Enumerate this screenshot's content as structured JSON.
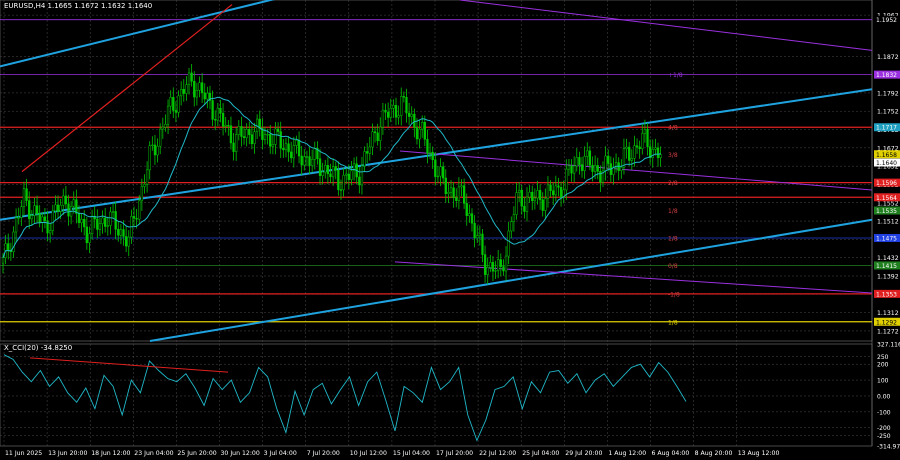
{
  "header": {
    "symbol_line": "EURUSD,H4  1.1665 1.1672 1.1632 1.1640",
    "osc_line": "X_CCI(20) -34.8250"
  },
  "colors": {
    "background": "#000000",
    "candle": "#00c800",
    "ma": "#20b8c8",
    "trend": "#1fa3e0",
    "channel": "#9b30e0",
    "level_red": "#e02020",
    "red_trendline": "#e02020",
    "grid": "#4a4a4a",
    "cci": "#20b8c8",
    "level_yellow": "#e0d000"
  },
  "chart_data": [
    {
      "type": "candlestick",
      "symbol": "EURUSD",
      "timeframe": "H4",
      "ohlc_last": {
        "open": 1.1665,
        "high": 1.1672,
        "low": 1.1632,
        "close": 1.164
      },
      "ylim": [
        1.125,
        1.1995
      ],
      "price_ticks": [
        1.1962,
        1.1872,
        1.1792,
        1.1752,
        1.1712,
        1.1672,
        1.1632,
        1.1592,
        1.1552,
        1.1512,
        1.1472,
        1.1432,
        1.1392,
        1.1352,
        1.1312,
        1.1272
      ],
      "price_tag_values": [
        "1.1952",
        "1.1832",
        "1.1717",
        "1.1658",
        "1.1640",
        "1.1596",
        "1.1564",
        "1.1535",
        "1.1475",
        "1.1415",
        "1.1353",
        "1.1292"
      ],
      "x_labels": [
        "11 Jun 2025",
        "13 Jun 20:00",
        "18 Jun 12:00",
        "23 Jun 04:00",
        "25 Jun 20:00",
        "30 Jun 12:00",
        "3 Jul 04:00",
        "7 Jul 20:00",
        "10 Jul 12:00",
        "15 Jul 04:00",
        "17 Jul 20:00",
        "22 Jul 12:00",
        "25 Jul 04:00",
        "29 Jul 20:00",
        "1 Aug 12:00",
        "6 Aug 04:00",
        "8 Aug 20:00",
        "13 Aug 12:00"
      ],
      "horizontal_levels": [
        {
          "value": 1.1717,
          "color": "red"
        },
        {
          "value": 1.1596,
          "color": "red"
        },
        {
          "value": 1.1564,
          "color": "red"
        },
        {
          "value": 1.1353,
          "color": "red"
        },
        {
          "value": 1.1292,
          "color": "yellow"
        }
      ],
      "level_tags": [
        "1/8",
        "4/8",
        "3/8",
        "2/8",
        "1/8",
        "1/8",
        "0/8",
        "-1/8"
      ],
      "close_path": [
        {
          "bar": 0,
          "close": 1.142
        },
        {
          "bar": 8,
          "close": 1.156
        },
        {
          "bar": 16,
          "close": 1.15
        },
        {
          "bar": 24,
          "close": 1.156
        },
        {
          "bar": 32,
          "close": 1.149
        },
        {
          "bar": 40,
          "close": 1.152
        },
        {
          "bar": 48,
          "close": 1.147
        },
        {
          "bar": 56,
          "close": 1.165
        },
        {
          "bar": 64,
          "close": 1.176
        },
        {
          "bar": 72,
          "close": 1.182
        },
        {
          "bar": 80,
          "close": 1.176
        },
        {
          "bar": 88,
          "close": 1.169
        },
        {
          "bar": 96,
          "close": 1.171
        },
        {
          "bar": 104,
          "close": 1.169
        },
        {
          "bar": 112,
          "close": 1.166
        },
        {
          "bar": 120,
          "close": 1.164
        },
        {
          "bar": 128,
          "close": 1.16
        },
        {
          "bar": 136,
          "close": 1.162
        },
        {
          "bar": 144,
          "close": 1.173
        },
        {
          "bar": 152,
          "close": 1.177
        },
        {
          "bar": 160,
          "close": 1.17
        },
        {
          "bar": 168,
          "close": 1.159
        },
        {
          "bar": 176,
          "close": 1.156
        },
        {
          "bar": 184,
          "close": 1.142
        },
        {
          "bar": 190,
          "close": 1.14
        },
        {
          "bar": 196,
          "close": 1.156
        },
        {
          "bar": 204,
          "close": 1.156
        },
        {
          "bar": 212,
          "close": 1.158
        },
        {
          "bar": 220,
          "close": 1.165
        },
        {
          "bar": 228,
          "close": 1.162
        },
        {
          "bar": 236,
          "close": 1.164
        },
        {
          "bar": 244,
          "close": 1.169
        },
        {
          "bar": 252,
          "close": 1.165
        }
      ]
    },
    {
      "type": "line",
      "indicator": "X_CCI(20)",
      "last_value": -34.825,
      "ylim": [
        -314.975,
        327.116
      ],
      "ticks": [
        327.116,
        250,
        200,
        100,
        0,
        -100,
        -200,
        -250,
        -314.975
      ],
      "tick_labels": [
        "327.116",
        "250",
        "200",
        "100",
        "0.00",
        "-100",
        "-200",
        "-250",
        "-314.975"
      ],
      "values": [
        260,
        230,
        150,
        90,
        160,
        60,
        120,
        20,
        -40,
        50,
        -80,
        130,
        60,
        -120,
        100,
        20,
        220,
        160,
        110,
        90,
        140,
        50,
        -60,
        110,
        40,
        100,
        -40,
        20,
        180,
        120,
        -80,
        -230,
        30,
        -120,
        40,
        80,
        -50,
        40,
        120,
        -60,
        90,
        150,
        -30,
        -220,
        60,
        20,
        -40,
        180,
        40,
        90,
        180,
        -120,
        -280,
        -150,
        40,
        60,
        120,
        -80,
        90,
        20,
        150,
        160,
        80,
        140,
        20,
        100,
        140,
        60,
        120,
        180,
        200,
        120,
        210,
        150,
        60,
        -34.8
      ]
    }
  ]
}
